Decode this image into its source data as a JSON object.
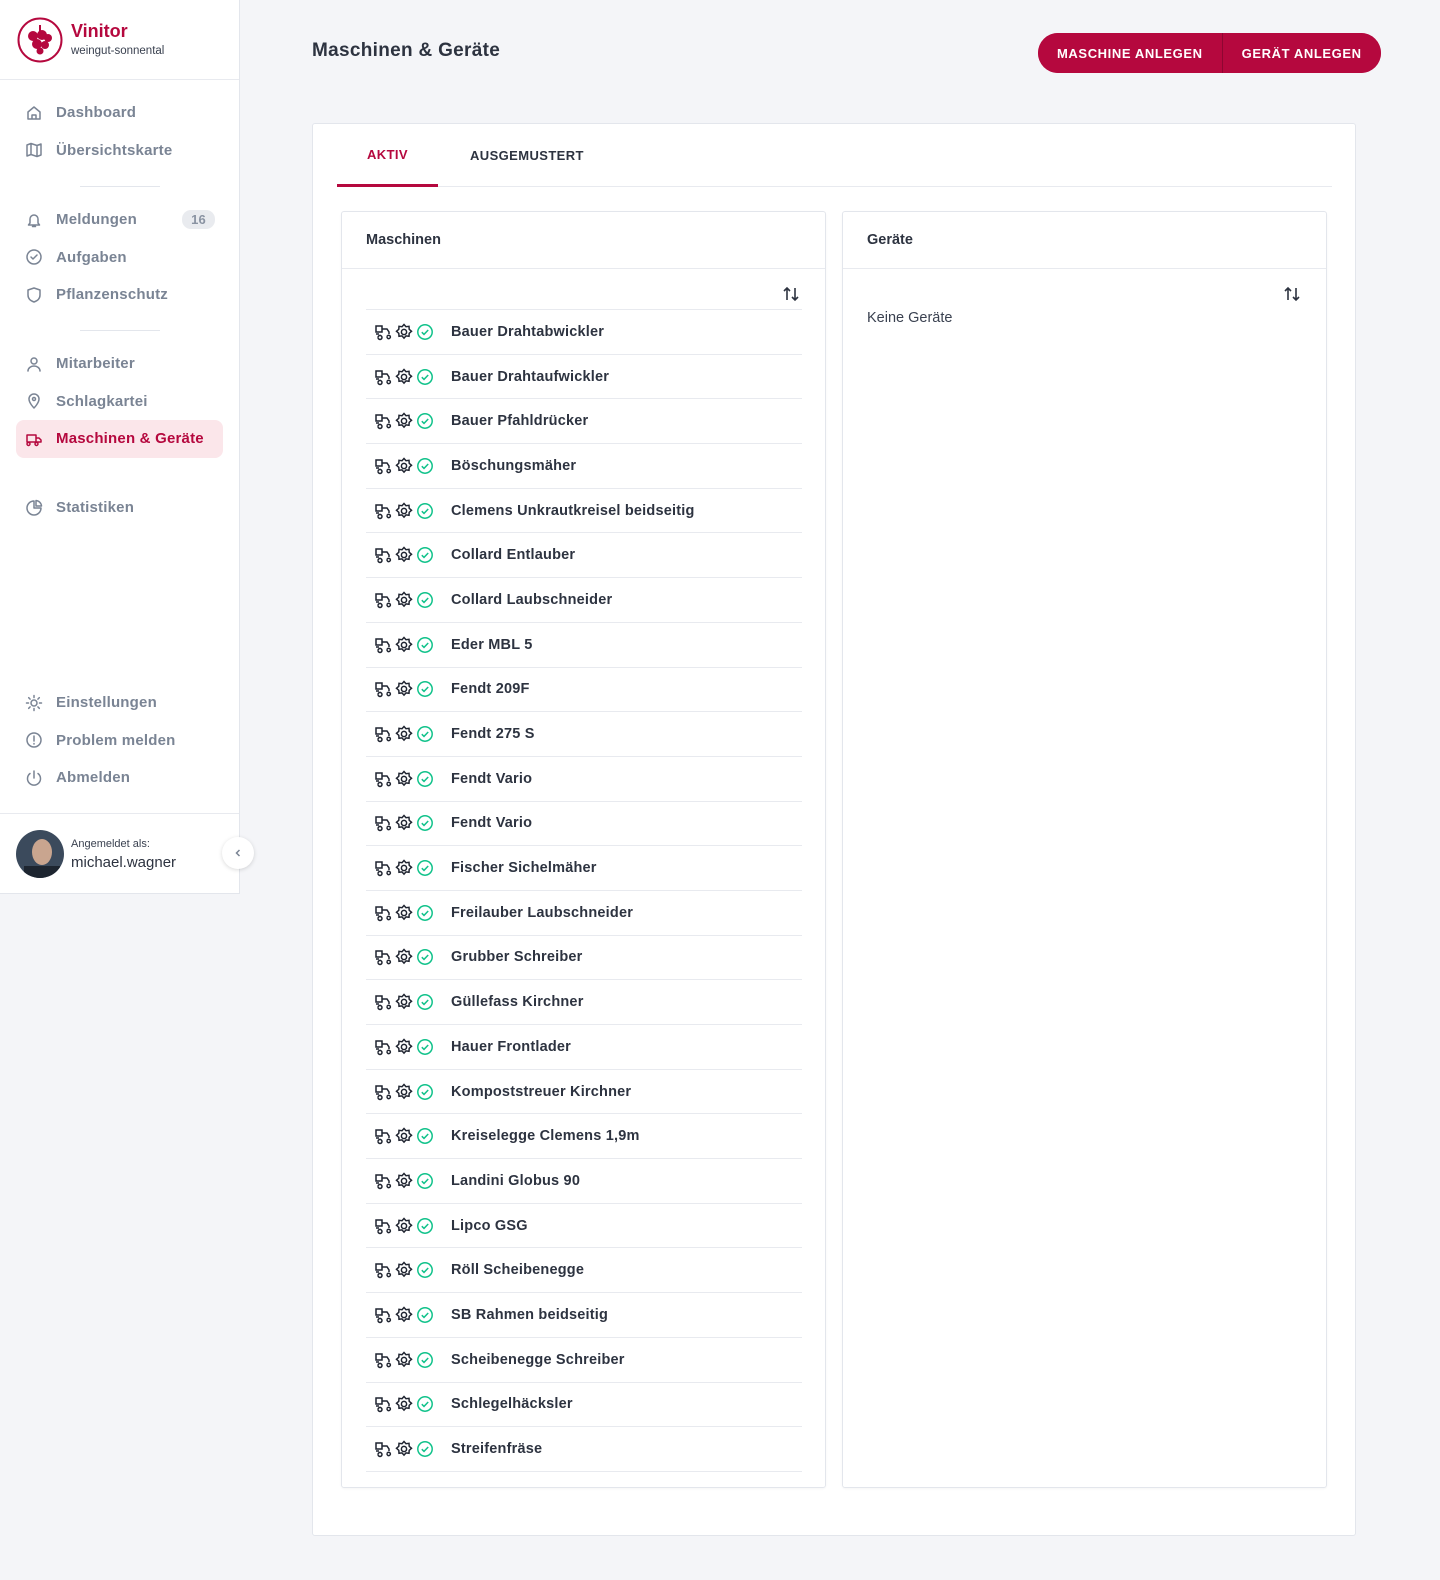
{
  "sidebar": {
    "brand": {
      "name": "Vinitor",
      "tenant": "weingut-sonnental"
    },
    "nav_groups": [
      [
        {
          "label": "Dashboard"
        },
        {
          "label": "Übersichtskarte"
        }
      ],
      [
        {
          "label": "Meldungen",
          "badge": 16
        },
        {
          "label": "Aufgaben"
        },
        {
          "label": "Pflanzenschutz"
        }
      ],
      [
        {
          "label": "Mitarbeiter"
        },
        {
          "label": "Schlagkartei"
        },
        {
          "label": "Maschinen & Geräte",
          "active": true
        }
      ],
      [
        {
          "label": "Statistiken"
        }
      ]
    ],
    "footer_nav": [
      {
        "label": "Einstellungen"
      },
      {
        "label": "Problem melden"
      },
      {
        "label": "Abmelden"
      }
    ],
    "user": {
      "caption": "Angemeldet als:",
      "username": "michael.wagner"
    }
  },
  "header": {
    "title": "Maschinen & Geräte",
    "actions": [
      "MASCHINE ANLEGEN",
      "GERÄT ANLEGEN"
    ]
  },
  "tabs": {
    "items": [
      "AKTIV",
      "AUSGEMUSTERT"
    ],
    "active": 0
  },
  "machines": {
    "title": "Maschinen",
    "items": [
      "Bauer Drahtabwickler",
      "Bauer Drahtaufwickler",
      "Bauer Pfahldrücker",
      "Böschungsmäher",
      "Clemens Unkrautkreisel beidseitig",
      "Collard Entlauber",
      "Collard Laubschneider",
      "Eder MBL 5",
      "Fendt 209F",
      "Fendt 275 S",
      "Fendt Vario",
      "Fendt Vario",
      "Fischer Sichelmäher",
      "Freilauber Laubschneider",
      "Grubber Schreiber",
      "Güllefass Kirchner",
      "Hauer Frontlader",
      "Kompoststreuer Kirchner",
      "Kreiselegge Clemens 1,9m",
      "Landini Globus 90",
      "Lipco GSG",
      "Röll Scheibenegge",
      "SB Rahmen beidseitig",
      "Scheibenegge Schreiber",
      "Schlegelhäcksler",
      "Streifenfräse"
    ]
  },
  "devices": {
    "title": "Geräte",
    "empty": "Keine Geräte"
  }
}
